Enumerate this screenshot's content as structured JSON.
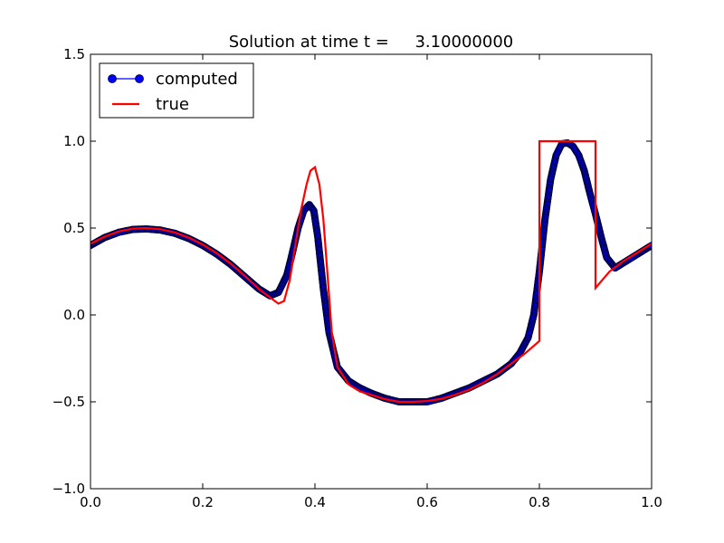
{
  "chart_data": {
    "type": "line",
    "title": "Solution at time t =     3.10000000",
    "xlabel": "",
    "ylabel": "",
    "xlim": [
      0.0,
      1.0
    ],
    "ylim": [
      -1.0,
      1.5
    ],
    "x_ticks": [
      "0.0",
      "0.2",
      "0.4",
      "0.6",
      "0.8",
      "1.0"
    ],
    "y_ticks": [
      "1.5",
      "1.0",
      "0.5",
      "0.0",
      "−0.5",
      "−1.0"
    ],
    "x_tick_values": [
      0.0,
      0.2,
      0.4,
      0.6,
      0.8,
      1.0
    ],
    "y_tick_values": [
      1.5,
      1.0,
      0.5,
      0.0,
      -0.5,
      -1.0
    ],
    "grid": false,
    "legend_position": "top-left",
    "series": [
      {
        "name": "computed",
        "style": "line-with-circle-markers",
        "color": "#0000ff",
        "marker_edge": "#000033",
        "x": [
          0.0,
          0.025,
          0.05,
          0.075,
          0.1,
          0.125,
          0.15,
          0.175,
          0.2,
          0.225,
          0.25,
          0.275,
          0.3,
          0.32,
          0.335,
          0.35,
          0.36,
          0.37,
          0.38,
          0.39,
          0.398,
          0.405,
          0.415,
          0.425,
          0.44,
          0.46,
          0.48,
          0.5,
          0.525,
          0.55,
          0.575,
          0.6,
          0.625,
          0.65,
          0.675,
          0.7,
          0.725,
          0.75,
          0.765,
          0.78,
          0.79,
          0.8,
          0.81,
          0.82,
          0.83,
          0.84,
          0.85,
          0.86,
          0.87,
          0.88,
          0.89,
          0.9,
          0.91,
          0.92,
          0.935,
          0.95,
          0.965,
          0.98,
          1.0
        ],
        "y": [
          0.4,
          0.445,
          0.475,
          0.492,
          0.495,
          0.488,
          0.47,
          0.44,
          0.4,
          0.35,
          0.29,
          0.22,
          0.15,
          0.11,
          0.13,
          0.23,
          0.36,
          0.5,
          0.6,
          0.635,
          0.6,
          0.45,
          0.15,
          -0.1,
          -0.3,
          -0.38,
          -0.42,
          -0.45,
          -0.48,
          -0.5,
          -0.5,
          -0.5,
          -0.48,
          -0.45,
          -0.42,
          -0.38,
          -0.34,
          -0.28,
          -0.22,
          -0.13,
          0.0,
          0.25,
          0.55,
          0.78,
          0.92,
          0.985,
          0.99,
          0.97,
          0.92,
          0.83,
          0.7,
          0.58,
          0.45,
          0.33,
          0.27,
          0.3,
          0.33,
          0.36,
          0.4
        ]
      },
      {
        "name": "true",
        "style": "line",
        "color": "#ff0000",
        "x": [
          0.0,
          0.025,
          0.05,
          0.075,
          0.1,
          0.125,
          0.15,
          0.175,
          0.2,
          0.225,
          0.25,
          0.275,
          0.3,
          0.32,
          0.335,
          0.345,
          0.355,
          0.365,
          0.375,
          0.385,
          0.392,
          0.4,
          0.408,
          0.415,
          0.422,
          0.43,
          0.44,
          0.46,
          0.48,
          0.5,
          0.525,
          0.55,
          0.575,
          0.6,
          0.625,
          0.65,
          0.675,
          0.7,
          0.725,
          0.75,
          0.775,
          0.8,
          0.8,
          0.9,
          0.9,
          0.925,
          0.95,
          0.975,
          1.0
        ],
        "y": [
          0.41,
          0.45,
          0.48,
          0.497,
          0.5,
          0.493,
          0.475,
          0.445,
          0.405,
          0.355,
          0.295,
          0.225,
          0.15,
          0.1,
          0.065,
          0.08,
          0.2,
          0.4,
          0.6,
          0.75,
          0.83,
          0.85,
          0.75,
          0.55,
          0.25,
          -0.1,
          -0.3,
          -0.4,
          -0.44,
          -0.46,
          -0.485,
          -0.5,
          -0.5,
          -0.495,
          -0.483,
          -0.46,
          -0.43,
          -0.39,
          -0.34,
          -0.28,
          -0.22,
          -0.15,
          1.0,
          1.0,
          0.155,
          0.25,
          0.31,
          0.36,
          0.41
        ]
      }
    ]
  }
}
